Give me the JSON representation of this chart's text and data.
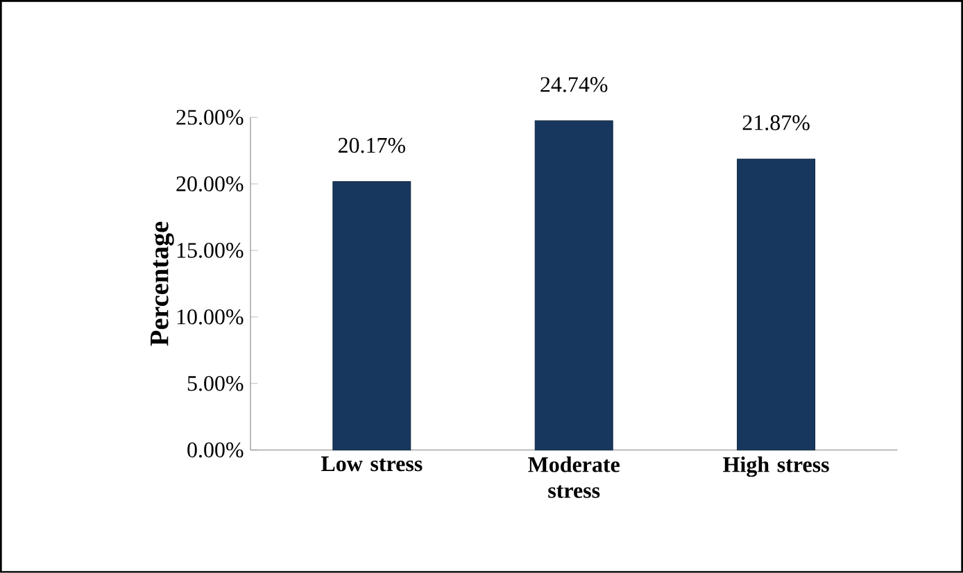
{
  "chart_data": {
    "type": "bar",
    "ylabel": "Percentage",
    "categories": [
      "Low stress",
      "Moderate stress",
      "High stress"
    ],
    "values": [
      20.17,
      24.74,
      21.87
    ],
    "value_labels": [
      "20.17%",
      "24.74%",
      "21.87%"
    ],
    "color": "#17375e",
    "ylim": [
      0,
      25
    ],
    "yticks": [
      {
        "value": 0,
        "label": "0.00%"
      },
      {
        "value": 5,
        "label": "5.00%"
      },
      {
        "value": 10,
        "label": "10.00%"
      },
      {
        "value": 15,
        "label": "15.00%"
      },
      {
        "value": 20,
        "label": "20.00%"
      },
      {
        "value": 25,
        "label": "25.00%"
      }
    ],
    "grid": false
  }
}
